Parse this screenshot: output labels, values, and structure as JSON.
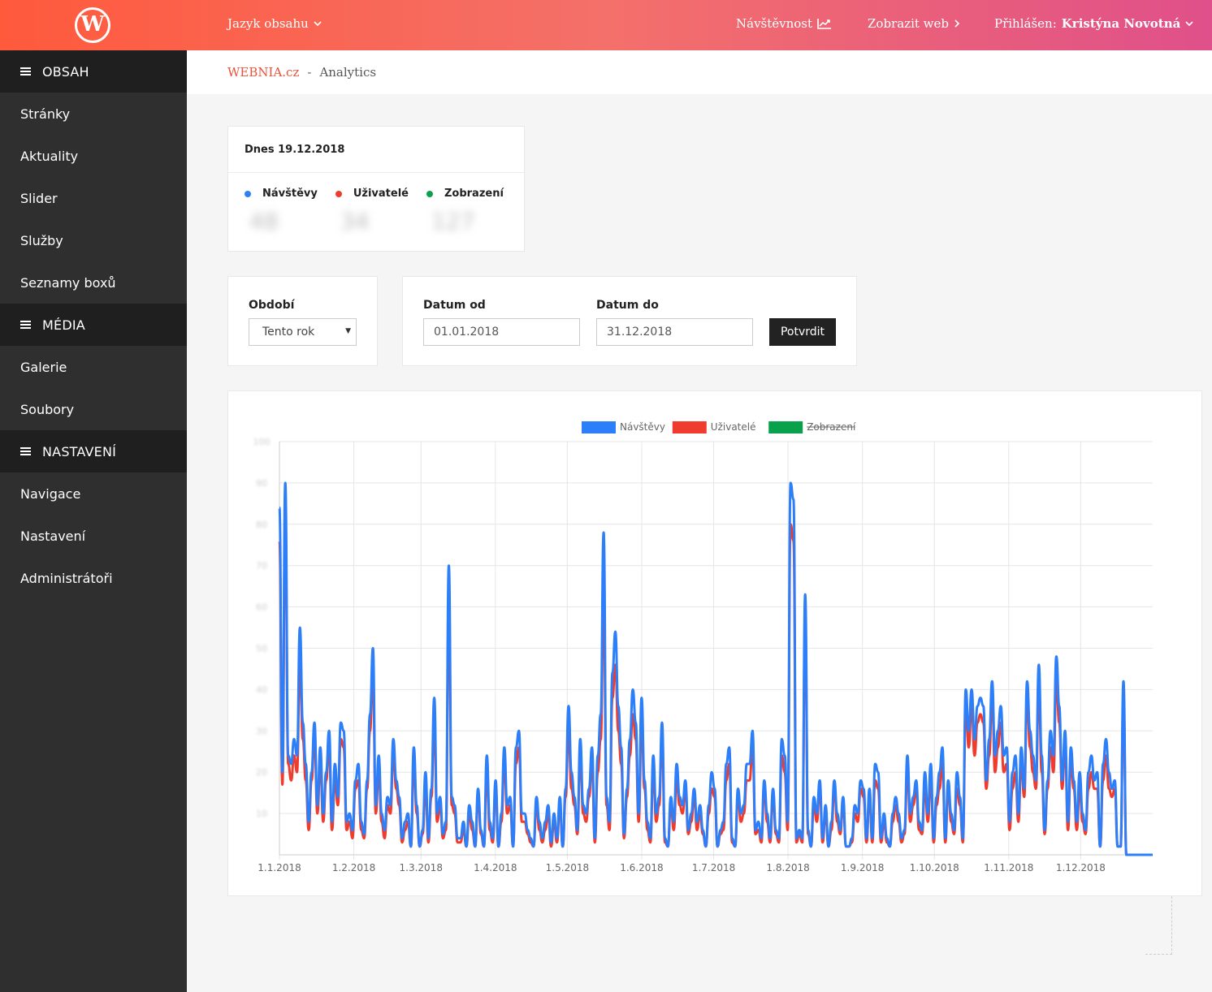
{
  "topbar": {
    "logo_letter": "W",
    "content_lang": "Jazyk obsahu",
    "visits": "Návštěvnost",
    "show_web": "Zobrazit web",
    "logged_label": "Přihlášen:",
    "user_name": "Kristýna Novotná"
  },
  "sidebar": {
    "sections": [
      {
        "title": "OBSAH",
        "items": [
          "Stránky",
          "Aktuality",
          "Slider",
          "Služby",
          "Seznamy boxů"
        ]
      },
      {
        "title": "MÉDIA",
        "items": [
          "Galerie",
          "Soubory"
        ]
      },
      {
        "title": "NASTAVENÍ",
        "items": [
          "Navigace",
          "Nastavení",
          "Administrátoři"
        ]
      }
    ]
  },
  "breadcrumb": {
    "site": "WEBNIA.cz",
    "separator": "-",
    "current": "Analytics"
  },
  "today": {
    "title": "Dnes 19.12.2018",
    "stats": [
      {
        "label": "Návštěvy",
        "color": "#2d7ff9",
        "value": "48"
      },
      {
        "label": "Uživatelé",
        "color": "#f03c2e",
        "value": "34"
      },
      {
        "label": "Zobrazení",
        "color": "#0aa14d",
        "value": "127"
      }
    ]
  },
  "filters": {
    "period_label": "Období",
    "period_value": "Tento rok",
    "from_label": "Datum od",
    "from_value": "01.01.2018",
    "to_label": "Datum do",
    "to_value": "31.12.2018",
    "submit": "Potvrdit"
  },
  "chart_data": {
    "type": "line",
    "legend": [
      {
        "name": "Návštěvy",
        "color": "#2d7ff9",
        "hidden": false
      },
      {
        "name": "Uživatelé",
        "color": "#f03c2e",
        "hidden": false
      },
      {
        "name": "Zobrazení",
        "color": "#0aa14d",
        "hidden": true
      }
    ],
    "x_ticks": [
      "1.1.2018",
      "1.2.2018",
      "1.3.2018",
      "1.4.2018",
      "1.5.2018",
      "1.6.2018",
      "1.7.2018",
      "1.8.2018",
      "1.9.2018",
      "1.10.2018",
      "1.11.2018",
      "1.12.2018"
    ],
    "ylim": [
      0,
      100
    ],
    "grid": true,
    "legend_position": "top",
    "series": [
      {
        "name": "Návštěvy",
        "color": "#2d7ff9",
        "values": [
          84,
          20,
          90,
          24,
          22,
          28,
          24,
          55,
          32,
          22,
          8,
          20,
          32,
          12,
          26,
          10,
          20,
          30,
          8,
          22,
          14,
          32,
          30,
          8,
          10,
          6,
          18,
          22,
          8,
          5,
          18,
          34,
          50,
          12,
          24,
          10,
          6,
          14,
          12,
          28,
          18,
          14,
          4,
          8,
          10,
          2,
          26,
          12,
          2,
          6,
          20,
          4,
          16,
          38,
          10,
          14,
          5,
          8,
          70,
          14,
          12,
          4,
          4,
          8,
          2,
          12,
          8,
          2,
          16,
          6,
          2,
          24,
          8,
          4,
          18,
          2,
          10,
          26,
          12,
          14,
          2,
          26,
          30,
          10,
          10,
          6,
          4,
          2,
          14,
          8,
          4,
          8,
          12,
          3,
          10,
          4,
          14,
          2,
          16,
          36,
          20,
          14,
          6,
          28,
          12,
          10,
          16,
          26,
          4,
          24,
          34,
          78,
          14,
          8,
          44,
          54,
          36,
          26,
          5,
          16,
          28,
          40,
          32,
          10,
          38,
          18,
          8,
          4,
          24,
          10,
          14,
          32,
          4,
          2,
          14,
          8,
          22,
          14,
          12,
          18,
          6,
          10,
          16,
          8,
          12,
          6,
          2,
          12,
          20,
          16,
          2,
          6,
          8,
          22,
          26,
          4,
          2,
          16,
          10,
          12,
          22,
          22,
          30,
          6,
          8,
          4,
          18,
          10,
          4,
          16,
          6,
          4,
          28,
          24,
          8,
          90,
          86,
          4,
          6,
          4,
          63,
          6,
          2,
          14,
          10,
          18,
          4,
          12,
          2,
          8,
          18,
          10,
          6,
          14,
          2,
          2,
          4,
          12,
          10,
          18,
          16,
          4,
          16,
          4,
          22,
          20,
          4,
          10,
          4,
          2,
          10,
          14,
          10,
          4,
          6,
          24,
          10,
          14,
          18,
          8,
          6,
          20,
          10,
          22,
          4,
          14,
          20,
          26,
          4,
          18,
          10,
          6,
          20,
          14,
          4,
          40,
          30,
          40,
          28,
          36,
          38,
          36,
          18,
          28,
          42,
          24,
          30,
          36,
          24,
          26,
          8,
          20,
          24,
          10,
          26,
          16,
          42,
          30,
          24,
          18,
          46,
          24,
          6,
          18,
          30,
          24,
          48,
          36,
          18,
          30,
          8,
          26,
          18,
          8,
          20,
          10,
          6,
          20,
          24,
          18,
          20,
          2,
          22,
          28,
          20,
          16,
          18,
          2,
          2,
          42,
          0,
          0,
          0,
          0,
          0,
          0,
          0,
          0,
          0,
          0
        ]
      },
      {
        "name": "Uživatelé",
        "color": "#f03c2e",
        "values": [
          76,
          17,
          82,
          22,
          18,
          24,
          20,
          46,
          28,
          18,
          6,
          18,
          28,
          10,
          22,
          8,
          18,
          26,
          6,
          18,
          12,
          28,
          26,
          6,
          8,
          4,
          16,
          18,
          6,
          4,
          16,
          30,
          44,
          10,
          20,
          8,
          4,
          12,
          10,
          24,
          16,
          12,
          3,
          6,
          8,
          2,
          22,
          10,
          2,
          5,
          16,
          3,
          14,
          32,
          8,
          12,
          4,
          6,
          60,
          12,
          10,
          3,
          3,
          6,
          2,
          10,
          6,
          2,
          14,
          5,
          2,
          20,
          6,
          3,
          16,
          2,
          8,
          22,
          10,
          12,
          2,
          22,
          26,
          8,
          8,
          5,
          3,
          2,
          12,
          6,
          3,
          6,
          10,
          2,
          8,
          3,
          12,
          2,
          14,
          30,
          16,
          12,
          5,
          24,
          10,
          8,
          14,
          22,
          3,
          20,
          28,
          62,
          12,
          6,
          38,
          46,
          30,
          22,
          4,
          14,
          24,
          34,
          28,
          8,
          32,
          16,
          6,
          3,
          20,
          8,
          12,
          28,
          3,
          2,
          12,
          6,
          18,
          12,
          10,
          16,
          5,
          8,
          14,
          6,
          10,
          5,
          2,
          10,
          16,
          14,
          2,
          5,
          6,
          18,
          22,
          3,
          2,
          14,
          8,
          10,
          18,
          18,
          26,
          5,
          6,
          3,
          16,
          8,
          3,
          14,
          5,
          3,
          24,
          20,
          6,
          80,
          76,
          3,
          5,
          3,
          56,
          5,
          2,
          12,
          8,
          16,
          3,
          10,
          2,
          6,
          16,
          8,
          5,
          12,
          2,
          2,
          3,
          10,
          8,
          16,
          14,
          3,
          14,
          3,
          18,
          16,
          3,
          8,
          3,
          2,
          8,
          12,
          8,
          3,
          5,
          20,
          8,
          12,
          16,
          6,
          5,
          16,
          8,
          18,
          3,
          12,
          16,
          22,
          3,
          16,
          8,
          5,
          16,
          12,
          3,
          36,
          26,
          36,
          24,
          32,
          34,
          32,
          16,
          24,
          38,
          20,
          26,
          32,
          20,
          22,
          6,
          16,
          20,
          8,
          22,
          14,
          38,
          26,
          20,
          16,
          40,
          20,
          5,
          16,
          26,
          20,
          42,
          32,
          16,
          26,
          6,
          22,
          16,
          6,
          16,
          8,
          5,
          16,
          20,
          16,
          16,
          2,
          18,
          24,
          16,
          14,
          16,
          2,
          2,
          38,
          0,
          0,
          0,
          0,
          0,
          0,
          0,
          0,
          0,
          0
        ]
      },
      {
        "name": "Zobrazení",
        "color": "#0aa14d",
        "hidden": true,
        "values": []
      }
    ]
  }
}
